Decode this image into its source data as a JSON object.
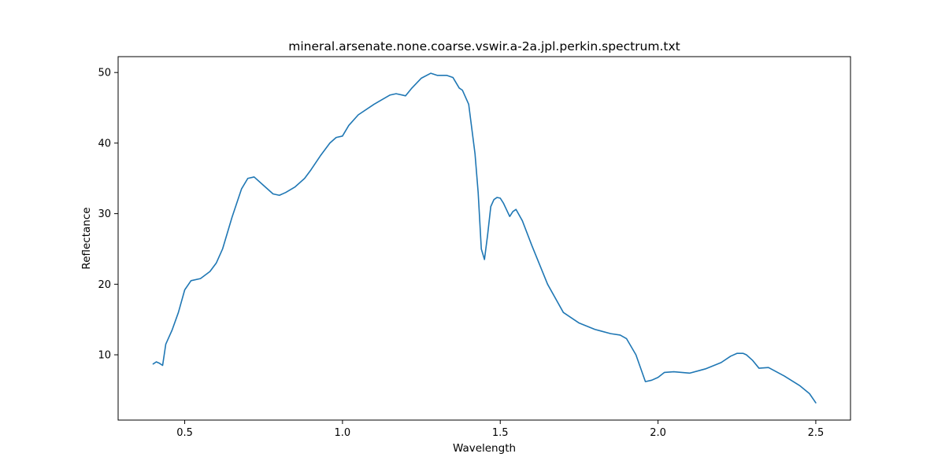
{
  "chart_data": {
    "type": "line",
    "title": "mineral.arsenate.none.coarse.vswir.a-2a.jpl.perkin.spectrum.txt",
    "xlabel": "Wavelength",
    "ylabel": "Reflectance",
    "xlim": [
      0.289,
      2.61
    ],
    "ylim": [
      0.75,
      52.25
    ],
    "x_ticks": [
      0.5,
      1.0,
      1.5,
      2.0,
      2.5
    ],
    "x_tick_labels": [
      "0.5",
      "1.0",
      "1.5",
      "2.0",
      "2.5"
    ],
    "y_ticks": [
      10,
      20,
      30,
      40,
      50
    ],
    "y_tick_labels": [
      "10",
      "20",
      "30",
      "40",
      "50"
    ],
    "grid": false,
    "line_color": "#1f77b4",
    "series": [
      {
        "x": [
          0.4,
          0.41,
          0.42,
          0.43,
          0.44,
          0.45,
          0.46,
          0.48,
          0.5,
          0.52,
          0.55,
          0.58,
          0.6,
          0.62,
          0.65,
          0.68,
          0.7,
          0.72,
          0.75,
          0.78,
          0.8,
          0.82,
          0.85,
          0.88,
          0.9,
          0.93,
          0.96,
          0.98,
          1.0,
          1.02,
          1.05,
          1.1,
          1.15,
          1.17,
          1.2,
          1.22,
          1.25,
          1.28,
          1.3,
          1.33,
          1.35,
          1.37,
          1.38,
          1.4,
          1.42,
          1.43,
          1.44,
          1.45,
          1.46,
          1.47,
          1.48,
          1.49,
          1.5,
          1.51,
          1.53,
          1.54,
          1.55,
          1.57,
          1.6,
          1.65,
          1.7,
          1.75,
          1.8,
          1.85,
          1.88,
          1.9,
          1.93,
          1.96,
          1.98,
          2.0,
          2.02,
          2.05,
          2.1,
          2.15,
          2.2,
          2.23,
          2.25,
          2.27,
          2.28,
          2.3,
          2.32,
          2.35,
          2.4,
          2.45,
          2.48,
          2.5
        ],
        "y": [
          8.7,
          9.0,
          8.8,
          8.5,
          11.5,
          12.5,
          13.5,
          16.0,
          19.2,
          20.5,
          20.8,
          21.8,
          23.0,
          25.0,
          29.5,
          33.5,
          35.0,
          35.2,
          34.0,
          32.8,
          32.6,
          33.0,
          33.8,
          35.0,
          36.2,
          38.2,
          40.0,
          40.8,
          41.0,
          42.5,
          44.0,
          45.5,
          46.8,
          47.0,
          46.7,
          47.8,
          49.2,
          49.9,
          49.6,
          49.6,
          49.3,
          47.8,
          47.5,
          45.5,
          38.5,
          33.0,
          25.0,
          23.5,
          27.0,
          31.0,
          32.0,
          32.3,
          32.2,
          31.5,
          29.6,
          30.3,
          30.6,
          29.0,
          25.5,
          20.0,
          16.0,
          14.5,
          13.6,
          13.0,
          12.8,
          12.3,
          10.0,
          6.2,
          6.4,
          6.8,
          7.5,
          7.6,
          7.4,
          8.0,
          8.9,
          9.8,
          10.2,
          10.2,
          10.0,
          9.2,
          8.1,
          8.2,
          7.0,
          5.6,
          4.5,
          3.2
        ]
      }
    ]
  }
}
